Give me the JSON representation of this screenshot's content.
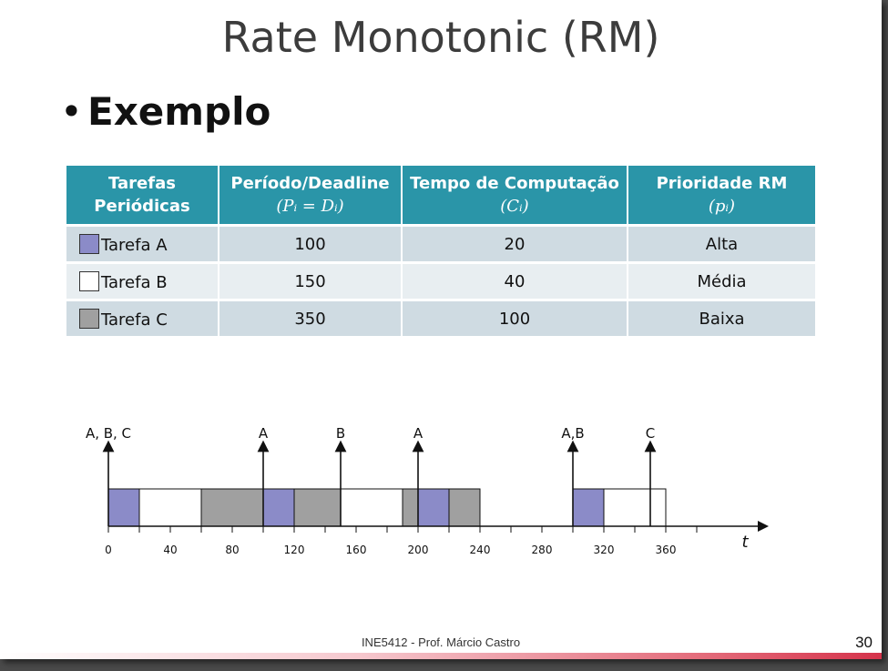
{
  "slide": {
    "title": "Rate Monotonic (RM)",
    "bullet_symbol": "•",
    "bullet": "Exemplo",
    "footer": "INE5412 - Prof. Márcio Castro",
    "page_number": "30"
  },
  "table": {
    "headers": [
      {
        "line1": "Tarefas",
        "line2": "Periódicas",
        "formula": ""
      },
      {
        "line1": "Período/Deadline",
        "line2": "",
        "formula": "(Pᵢ = Dᵢ)"
      },
      {
        "line1": "Tempo de Computação",
        "line2": "",
        "formula": "(Cᵢ)"
      },
      {
        "line1": "Prioridade RM",
        "line2": "",
        "formula": "(pᵢ)"
      }
    ],
    "rows": [
      {
        "name": "Tarefa A",
        "color": "#8b8bc8",
        "period": "100",
        "compute": "20",
        "priority": "Alta"
      },
      {
        "name": "Tarefa B",
        "color": "#ffffff",
        "period": "150",
        "compute": "40",
        "priority": "Média"
      },
      {
        "name": "Tarefa C",
        "color": "#a0a0a0",
        "period": "350",
        "compute": "100",
        "priority": "Baixa"
      }
    ]
  },
  "timeline": {
    "axis_label": "t",
    "ticks": [
      "0",
      "40",
      "80",
      "120",
      "160",
      "200",
      "240",
      "280",
      "320",
      "360"
    ],
    "tick_values": [
      0,
      40,
      80,
      120,
      160,
      200,
      240,
      280,
      320,
      360
    ],
    "minor_ticks": [
      20,
      60,
      100,
      140,
      180,
      220,
      260,
      300,
      340,
      380
    ],
    "arrivals": [
      {
        "t": 0,
        "label": "A, B, C"
      },
      {
        "t": 100,
        "label": "A"
      },
      {
        "t": 150,
        "label": "B"
      },
      {
        "t": 200,
        "label": "A"
      },
      {
        "t": 300,
        "label": "A,B"
      },
      {
        "t": 350,
        "label": "C"
      }
    ],
    "segments": [
      {
        "task": "A",
        "start": 0,
        "end": 20
      },
      {
        "task": "B",
        "start": 20,
        "end": 60
      },
      {
        "task": "C",
        "start": 60,
        "end": 100
      },
      {
        "task": "A",
        "start": 100,
        "end": 120
      },
      {
        "task": "C",
        "start": 120,
        "end": 150
      },
      {
        "task": "B",
        "start": 150,
        "end": 190
      },
      {
        "task": "C",
        "start": 190,
        "end": 200
      },
      {
        "task": "A",
        "start": 200,
        "end": 220
      },
      {
        "task": "C",
        "start": 220,
        "end": 240
      },
      {
        "task": "A",
        "start": 300,
        "end": 320
      },
      {
        "task": "B",
        "start": 320,
        "end": 360
      }
    ],
    "task_colors": {
      "A": "#8b8bc8",
      "B": "#ffffff",
      "C": "#a0a0a0"
    }
  }
}
